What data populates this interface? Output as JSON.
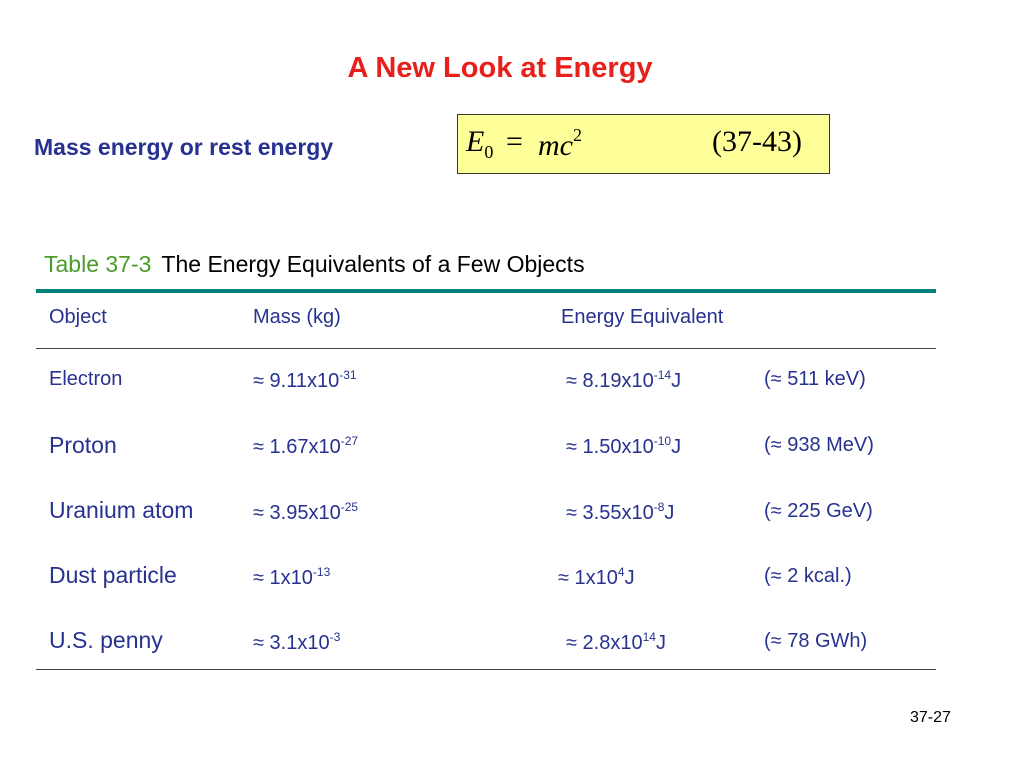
{
  "slide": {
    "title": "A New Look at Energy",
    "mass_label": "Mass energy or rest energy",
    "page_number": "37-27"
  },
  "equation": {
    "lhs_symbol": "E",
    "lhs_subscript": "0",
    "equals": "=",
    "rhs_symbol": "mc",
    "rhs_exponent": "2",
    "number": "(37-43)"
  },
  "table": {
    "caption_number": "Table 37-3",
    "caption_text": "The Energy Equivalents of a Few Objects",
    "headers": [
      "Object",
      "Mass (kg)",
      "Energy Equivalent"
    ],
    "rows": [
      {
        "object": "Electron",
        "mass_base": "≈ 9.11x10",
        "mass_exp": "-31",
        "energy_base": "≈ 8.19x10",
        "energy_exp": "-14",
        "energy_unit": "J",
        "alt": "(≈ 511 keV)"
      },
      {
        "object": "Proton",
        "mass_base": "≈ 1.67x10",
        "mass_exp": "-27",
        "energy_base": "≈ 1.50x10",
        "energy_exp": "-10",
        "energy_unit": "J",
        "alt": "(≈ 938 MeV)"
      },
      {
        "object": "Uranium atom",
        "mass_base": "≈ 3.95x10",
        "mass_exp": "-25",
        "energy_base": "≈ 3.55x10",
        "energy_exp": "-8",
        "energy_unit": "J",
        "alt": "(≈ 225 GeV)"
      },
      {
        "object": "Dust particle",
        "mass_base": "≈ 1x10",
        "mass_exp": "-13",
        "energy_base": "≈ 1x10",
        "energy_exp": "4",
        "energy_unit": "J",
        "alt": "(≈ 2 kcal.)"
      },
      {
        "object": "U.S. penny",
        "mass_base": "≈ 3.1x10",
        "mass_exp": "-3",
        "energy_base": "≈ 2.8x10",
        "energy_exp": "14",
        "energy_unit": "J",
        "alt": "(≈ 78 GWh)"
      }
    ]
  }
}
